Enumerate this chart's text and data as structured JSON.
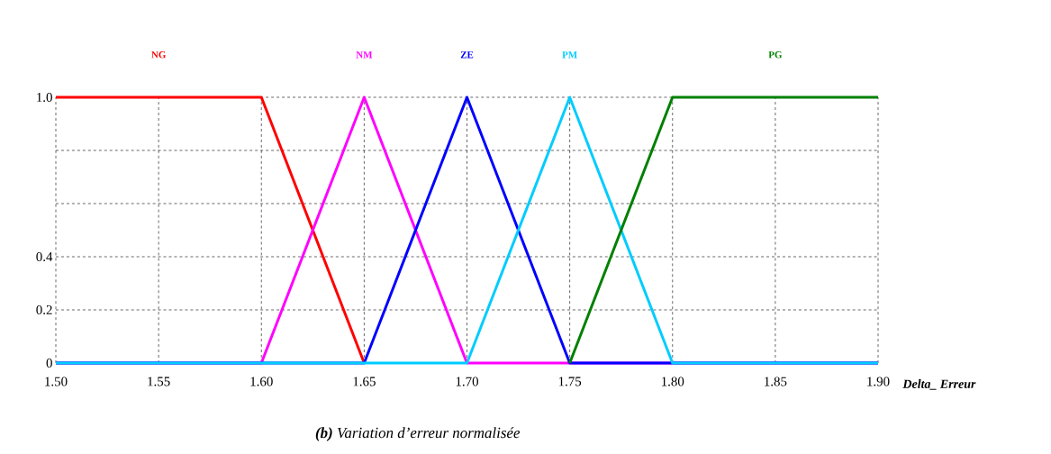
{
  "chart_data": {
    "type": "line",
    "title": "**(b)** Variation d’erreur normalisée",
    "xlabel": "Delta_ Erreur",
    "xlim": [
      1.5,
      1.9
    ],
    "ylim": [
      0,
      1
    ],
    "xticks": [
      {
        "value": 1.5,
        "label": "1.50"
      },
      {
        "value": 1.55,
        "label": "1.55"
      },
      {
        "value": 1.6,
        "label": "1.60"
      },
      {
        "value": 1.65,
        "label": "1.65"
      },
      {
        "value": 1.7,
        "label": "1.70"
      },
      {
        "value": 1.75,
        "label": "1.75"
      },
      {
        "value": 1.8,
        "label": "1.80"
      },
      {
        "value": 1.85,
        "label": "1.85"
      },
      {
        "value": 1.9,
        "label": "1.90"
      }
    ],
    "yticks": [
      {
        "value": 0,
        "label": "0"
      },
      {
        "value": 0.2,
        "label": "0.2"
      },
      {
        "value": 0.4,
        "label": "0.4"
      },
      {
        "value": 0.6,
        "label": null
      },
      {
        "value": 0.8,
        "label": null
      },
      {
        "value": 1,
        "label": "1.0"
      }
    ],
    "grid": true,
    "legend": false,
    "marker": "none",
    "line_style": "solid",
    "series": [
      {
        "name": "NG",
        "color": "#ff0000",
        "x": [
          1.5,
          1.6,
          1.65
        ],
        "values": [
          1,
          1,
          0
        ]
      },
      {
        "name": "NM",
        "color": "#ff00ff",
        "x": [
          1.5,
          1.6,
          1.65,
          1.7,
          1.9
        ],
        "values": [
          0,
          0,
          1,
          0,
          0
        ]
      },
      {
        "name": "ZE",
        "color": "#0000ff",
        "x": [
          1.5,
          1.65,
          1.7,
          1.75,
          1.9
        ],
        "values": [
          0,
          0,
          1,
          0,
          0
        ]
      },
      {
        "name": "PM",
        "color": "#00ccff",
        "x": [
          1.5,
          1.7,
          1.75,
          1.8,
          1.9
        ],
        "values": [
          0,
          0,
          1,
          0,
          0
        ]
      },
      {
        "name": "PG",
        "color": "#008000",
        "x": [
          1.75,
          1.8,
          1.9
        ],
        "values": [
          0,
          1,
          1
        ]
      }
    ]
  }
}
